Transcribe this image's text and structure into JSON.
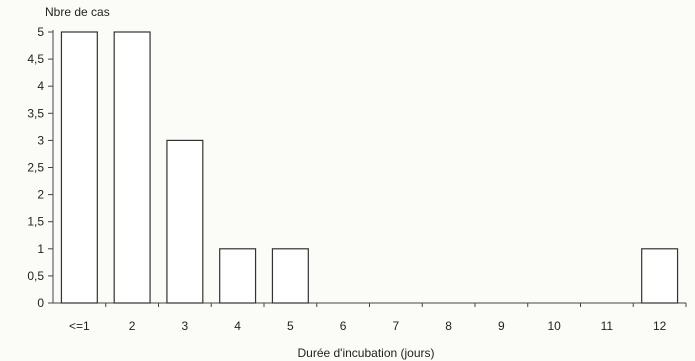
{
  "chart_data": {
    "type": "bar",
    "categories": [
      "<=1",
      "2",
      "3",
      "4",
      "5",
      "6",
      "7",
      "8",
      "9",
      "10",
      "11",
      "12"
    ],
    "values": [
      5,
      5,
      3,
      1,
      1,
      0,
      0,
      0,
      0,
      0,
      0,
      1
    ],
    "title": "",
    "xlabel": "Durée d'incubation (jours)",
    "ylabel": "Nbre de cas",
    "ylim": [
      0,
      5
    ],
    "yticks": [
      "0",
      "0,5",
      "1",
      "1,5",
      "2",
      "2,5",
      "3",
      "3,5",
      "4",
      "4,5",
      "5"
    ],
    "grid": false,
    "legend": "none"
  }
}
